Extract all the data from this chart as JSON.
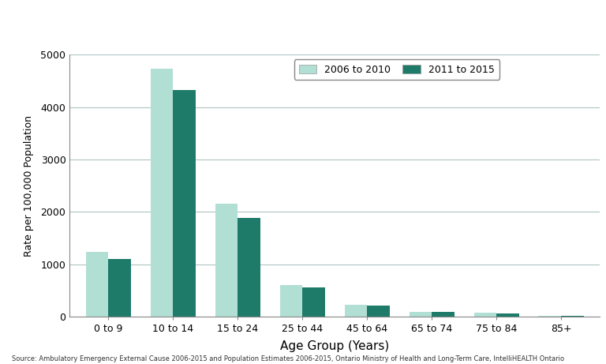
{
  "categories": [
    "0 to 9",
    "10 to 14",
    "15 to 24",
    "25 to 44",
    "45 to 64",
    "65 to 74",
    "75 to 84",
    "85+"
  ],
  "series": [
    {
      "label": "2006 to 2010",
      "color": "#b2dfd4",
      "values": [
        1230,
        4730,
        2150,
        610,
        220,
        95,
        70,
        18
      ]
    },
    {
      "label": "2011 to 2015",
      "color": "#1e7b6a",
      "values": [
        1100,
        4330,
        1880,
        565,
        215,
        85,
        65,
        22
      ]
    }
  ],
  "ylabel": "Rate per 100,000 Population",
  "xlabel": "Age Group (Years)",
  "ylim": [
    0,
    5000
  ],
  "yticks": [
    0,
    1000,
    2000,
    3000,
    4000,
    5000
  ],
  "source_text": "Source: Ambulatory Emergency External Cause 2006-2015 and Population Estimates 2006-2015, Ontario Ministry of Health and Long-Term Care, IntelliHEALTH Ontario",
  "bar_width": 0.35,
  "background_color": "#ffffff",
  "grid_color": "#b0c4c4",
  "tick_fontsize": 9,
  "label_fontsize": 11,
  "legend_fontsize": 9
}
